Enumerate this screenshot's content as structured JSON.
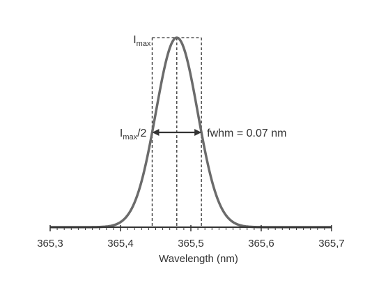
{
  "chart_data": {
    "type": "line",
    "title": "",
    "xlabel": "Wavelength (nm)",
    "ylabel": "",
    "xlim": [
      365.3,
      365.7
    ],
    "ylim": [
      0,
      1
    ],
    "x_ticks": [
      365.3,
      365.4,
      365.5,
      365.6,
      365.7
    ],
    "x_tick_labels": [
      "365,3",
      "365,4",
      "365,5",
      "365,6",
      "365,7"
    ],
    "grid": false,
    "series": [
      {
        "peak_center": 365.48,
        "fwhm": 0.07,
        "peak_value": 1.0,
        "x": [
          365.3,
          365.32,
          365.34,
          365.36,
          365.38,
          365.4,
          365.41,
          365.42,
          365.43,
          365.44,
          365.45,
          365.46,
          365.47,
          365.48,
          365.49,
          365.5,
          365.51,
          365.52,
          365.53,
          365.54,
          365.55,
          365.56,
          365.58,
          365.6,
          365.62,
          365.64,
          365.66,
          365.68,
          365.7
        ],
        "y": [
          0.0,
          0.0,
          0.0,
          0.0,
          0.01,
          0.04,
          0.09,
          0.18,
          0.32,
          0.5,
          0.68,
          0.84,
          0.96,
          1.0,
          0.96,
          0.84,
          0.68,
          0.5,
          0.32,
          0.18,
          0.09,
          0.04,
          0.01,
          0.0,
          0.0,
          0.0,
          0.0,
          0.0,
          0.0
        ]
      }
    ],
    "annotations": {
      "imax": {
        "main": "I",
        "sub": "max",
        "suffix": ""
      },
      "ihalf": {
        "main": "I",
        "sub": "max",
        "suffix": "/2"
      },
      "fwhm_label": "fwhm = 0.07 nm"
    },
    "colors": {
      "curve": "#6b6b6b",
      "axis": "#333333",
      "dashed": "#333333",
      "arrow": "#333333"
    }
  }
}
